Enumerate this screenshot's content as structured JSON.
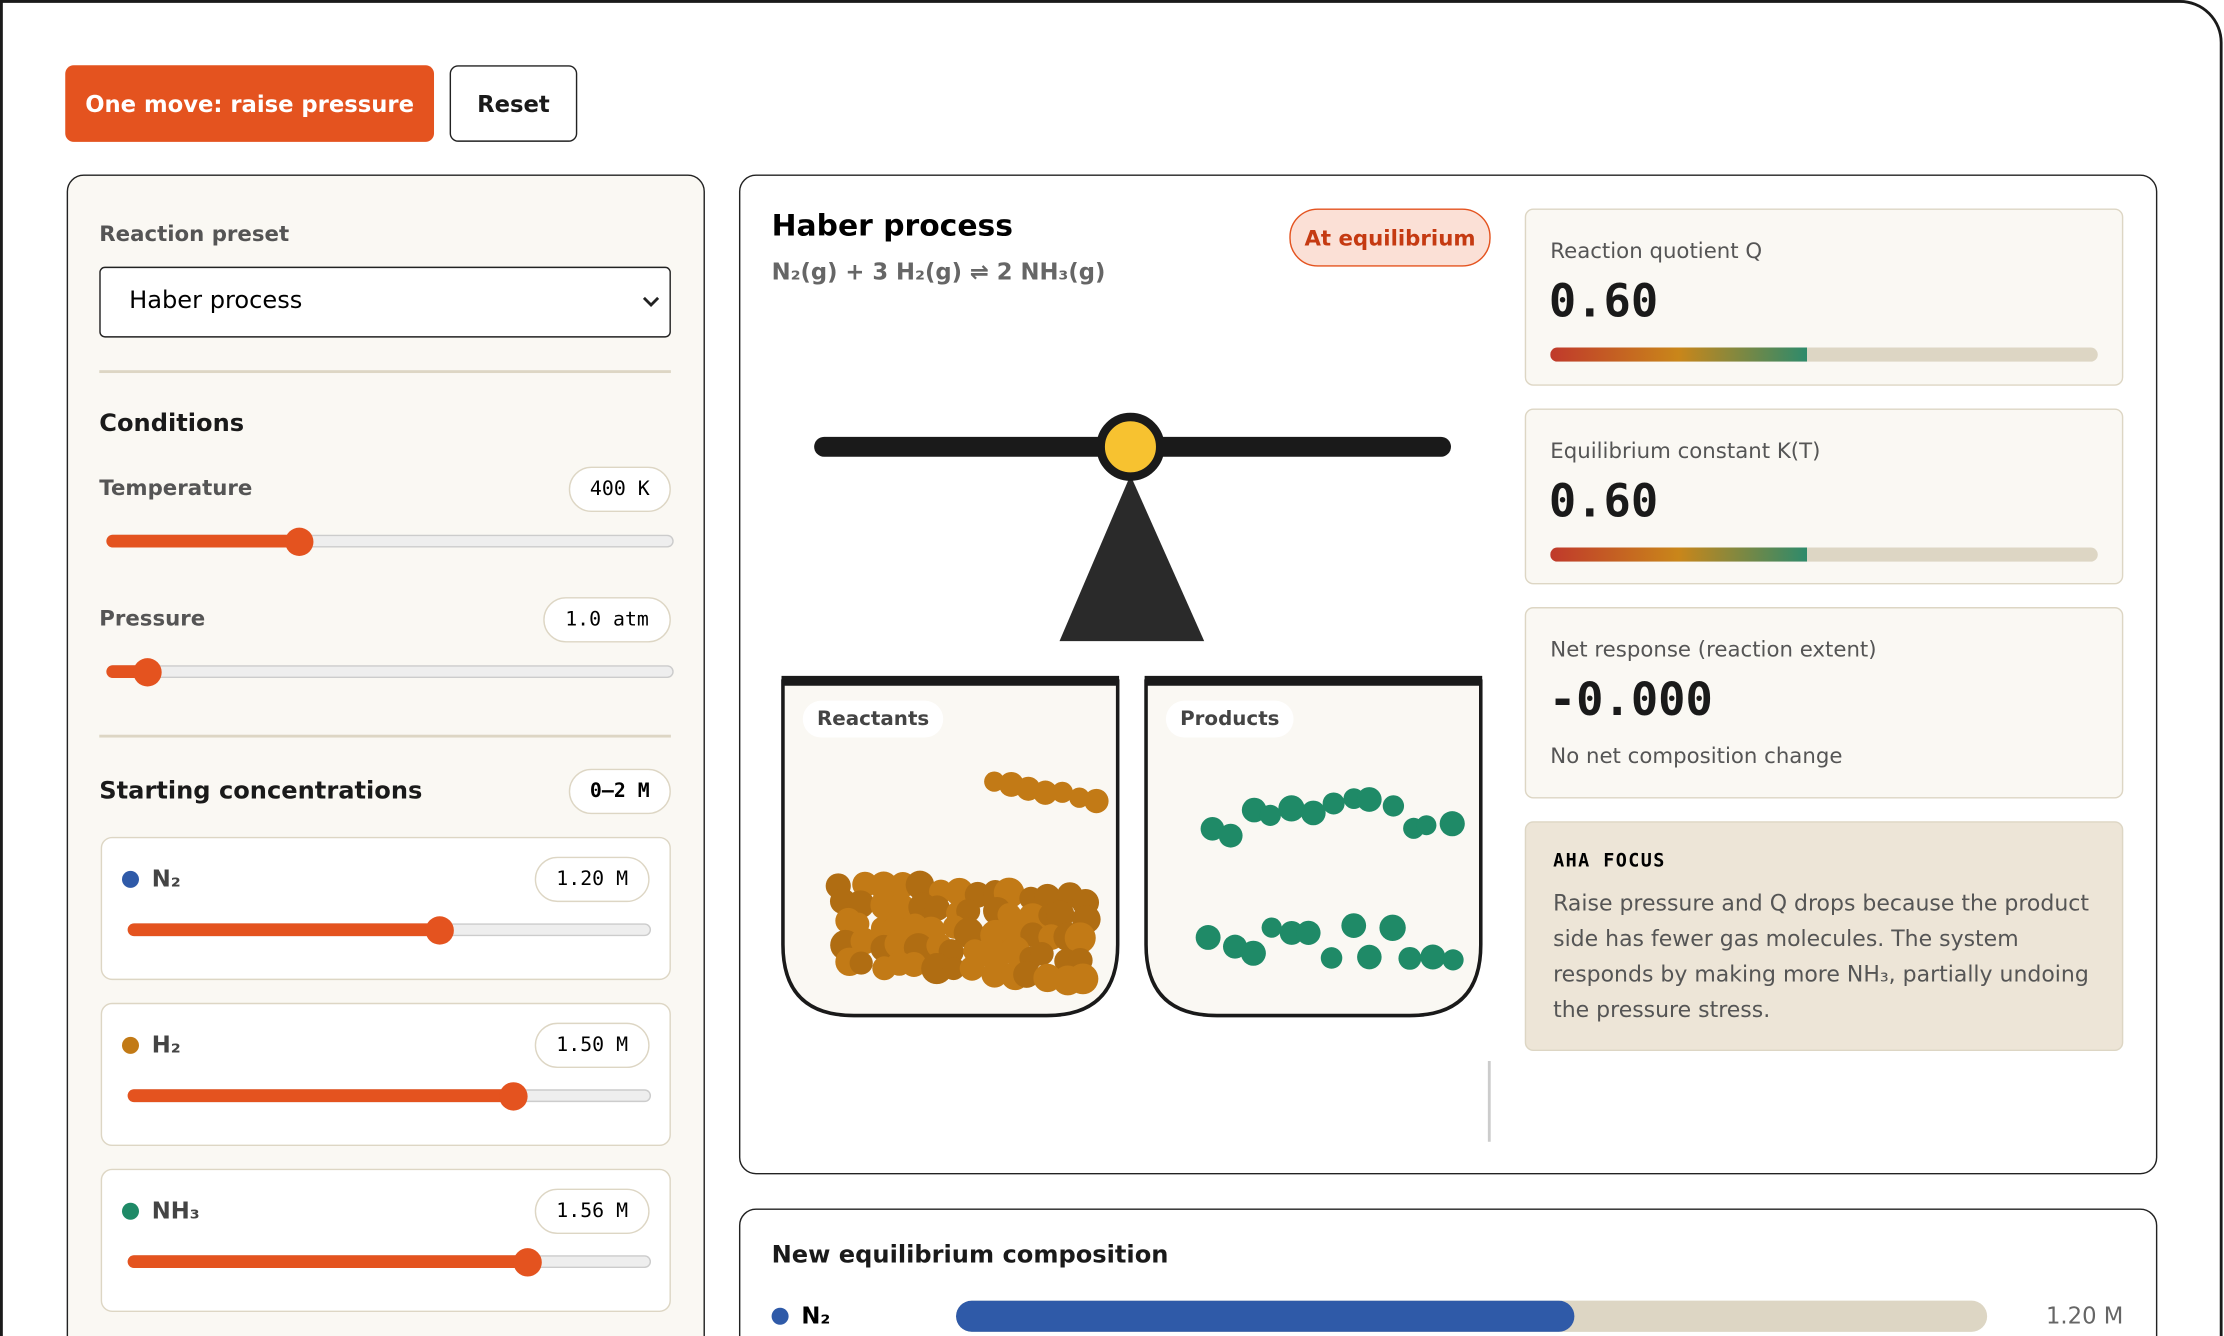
{
  "toolbar": {
    "primary_button": "One move: raise pressure",
    "reset_button": "Reset"
  },
  "controls": {
    "preset_label": "Reaction preset",
    "preset": "Haber process",
    "conditions_heading": "Conditions",
    "temperature": {
      "label": "Temperature",
      "value": "400 K"
    },
    "pressure": {
      "label": "Pressure",
      "value": "1.0 atm"
    },
    "concentrations_heading": "Starting concentrations",
    "concentrations_range": "0–2 M",
    "species": [
      {
        "name": "N₂",
        "value": "1.20 M"
      },
      {
        "name": "H₂",
        "value": "1.50 M"
      },
      {
        "name": "NH₃",
        "value": "1.56 M"
      }
    ]
  },
  "reaction": {
    "title": "Haber process",
    "equation": "N₂(g) + 3 H₂(g) ⇌ 2 NH₃(g)",
    "status": "At equilibrium",
    "reactants_label": "Reactants",
    "products_label": "Products"
  },
  "metrics": [
    {
      "label": "Reaction quotient Q",
      "value": "0.60"
    },
    {
      "label": "Equilibrium constant K(T)",
      "value": "0.60"
    },
    {
      "label": "Net response (reaction extent)",
      "value": "-0.000",
      "note": "No net composition change"
    }
  ],
  "aha": {
    "heading": "AHA FOCUS",
    "text": "Raise pressure and Q drops because the product side has fewer gas molecules. The system responds by making more NH₃, partially undoing the pressure stress."
  },
  "composition": {
    "title": "New equilibrium composition",
    "rows": [
      {
        "name": "N₂",
        "value": "1.20 M"
      }
    ]
  }
}
